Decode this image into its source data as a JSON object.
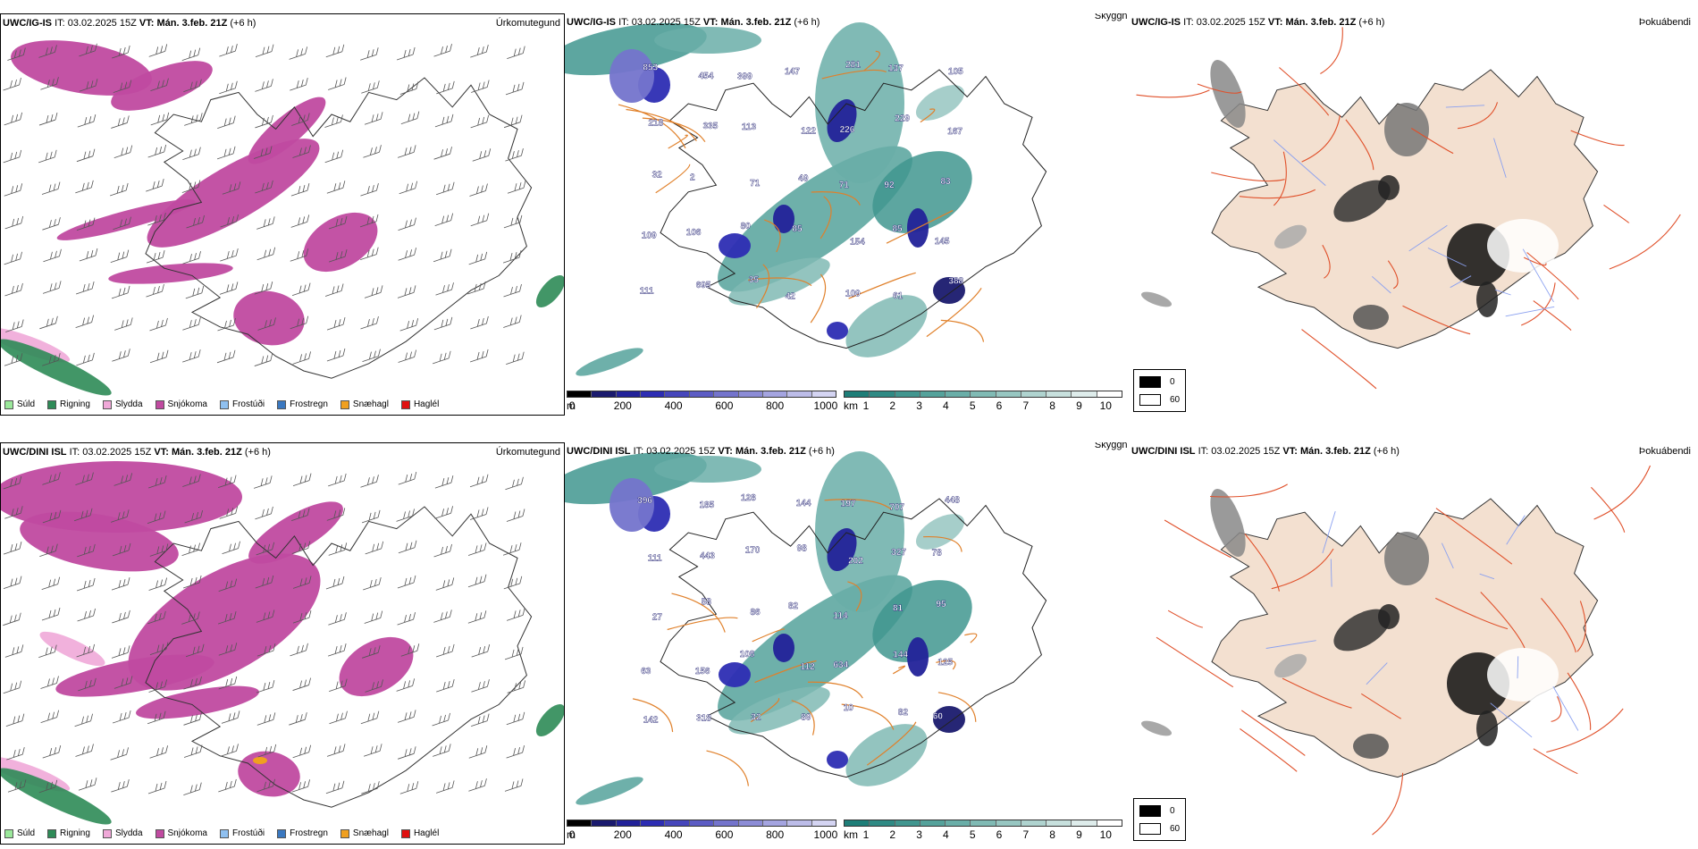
{
  "legend_types": [
    {
      "label": "Súld",
      "color": "#9be89b"
    },
    {
      "label": "Rigning",
      "color": "#2e8b57"
    },
    {
      "label": "Slydda",
      "color": "#f0a8d8"
    },
    {
      "label": "Snjókoma",
      "color": "#c04aa0"
    },
    {
      "label": "Frostúði",
      "color": "#8fc0f0"
    },
    {
      "label": "Frostregn",
      "color": "#3a78c0"
    },
    {
      "label": "Snæhagl",
      "color": "#f0a020"
    },
    {
      "label": "Haglél",
      "color": "#e01010"
    }
  ],
  "colorbars": {
    "height": {
      "unit": "m",
      "ticks": [
        "0",
        "200",
        "400",
        "600",
        "800",
        "1000"
      ],
      "colors": [
        "#000000",
        "#1a1a6e",
        "#222299",
        "#2d2db3",
        "#4646bb",
        "#5c5cc4",
        "#7474cc",
        "#8c8cd6",
        "#a4a4e0",
        "#bcbce8",
        "#d4d4f2"
      ]
    },
    "visibility": {
      "unit": "km",
      "ticks": [
        "1",
        "2",
        "3",
        "4",
        "5",
        "6",
        "7",
        "8",
        "9",
        "10"
      ],
      "colors": [
        "#1e7e78",
        "#2f8a84",
        "#41968f",
        "#55a29b",
        "#6aaea8",
        "#80bab4",
        "#97c6c1",
        "#afd3cf",
        "#c7e0dd",
        "#deeceb",
        "#ffffff"
      ]
    },
    "fog": {
      "values": [
        "0",
        "60"
      ],
      "colors": [
        "#000000",
        "#ffffff"
      ]
    }
  },
  "rows": [
    {
      "model": "UWC/IG-IS",
      "it_label": "IT:",
      "it_value": "03.02.2025 15Z",
      "vt_label": "VT:",
      "vt_value": "Mán. 3.feb. 21Z",
      "lead": "(+6 h)",
      "titles": {
        "precip": "Úrkomutegund",
        "vis": "Skyggni",
        "fog": "Þokuábendi"
      },
      "labels": [
        "853",
        "454",
        "399",
        "147",
        "281",
        "137",
        "105",
        "218",
        "335",
        "113",
        "122",
        "226",
        "229",
        "167",
        "32",
        "2",
        "71",
        "49",
        "71",
        "92",
        "83",
        "109",
        "106",
        "80",
        "85",
        "154",
        "85",
        "145",
        "111",
        "695",
        "35",
        "42",
        "109",
        "61",
        "388"
      ]
    },
    {
      "model": "UWC/DINI ISL",
      "it_label": "IT:",
      "it_value": "03.02.2025 15Z",
      "vt_label": "VT:",
      "vt_value": "Mán. 3.feb. 21Z",
      "lead": "(+6 h)",
      "titles": {
        "precip": "Úrkomutegund",
        "vis": "Skyggni",
        "fog": "Þokuábendi"
      },
      "labels": [
        "396",
        "185",
        "128",
        "144",
        "197",
        "707",
        "448",
        "111",
        "443",
        "170",
        "98",
        "202",
        "327",
        "78",
        "27",
        "58",
        "86",
        "82",
        "114",
        "81",
        "95",
        "63",
        "156",
        "108",
        "112",
        "634",
        "144",
        "125",
        "142",
        "318",
        "32",
        "89",
        "10",
        "82",
        "60"
      ]
    }
  ]
}
